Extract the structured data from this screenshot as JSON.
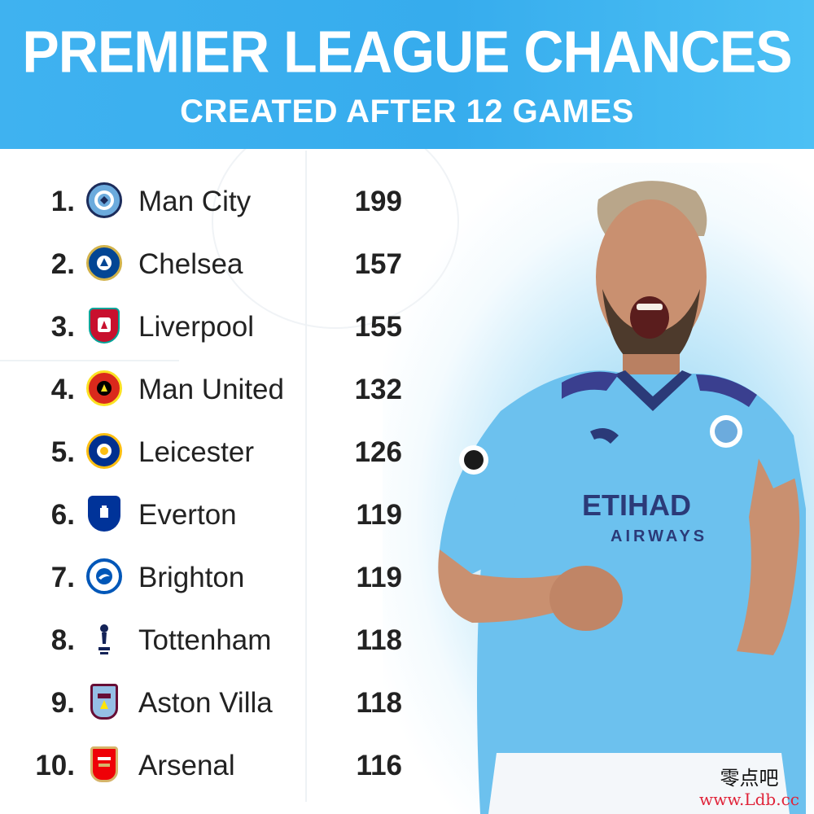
{
  "header": {
    "title": "PREMIER LEAGUE CHANCES",
    "subtitle": "CREATED AFTER 12 GAMES"
  },
  "colors": {
    "header_blue": "#3fb2f0",
    "text_dark": "#222222",
    "sky_blue": "#6cc4ee"
  },
  "rows": [
    {
      "rank": "1.",
      "club": "Man City",
      "value": "199",
      "badge_icon": "man-city-crest-icon"
    },
    {
      "rank": "2.",
      "club": "Chelsea",
      "value": "157",
      "badge_icon": "chelsea-crest-icon"
    },
    {
      "rank": "3.",
      "club": "Liverpool",
      "value": "155",
      "badge_icon": "liverpool-crest-icon"
    },
    {
      "rank": "4.",
      "club": "Man United",
      "value": "132",
      "badge_icon": "man-united-crest-icon"
    },
    {
      "rank": "5.",
      "club": "Leicester",
      "value": "126",
      "badge_icon": "leicester-crest-icon"
    },
    {
      "rank": "6.",
      "club": "Everton",
      "value": "119",
      "badge_icon": "everton-crest-icon"
    },
    {
      "rank": "7.",
      "club": "Brighton",
      "value": "119",
      "badge_icon": "brighton-crest-icon"
    },
    {
      "rank": "8.",
      "club": "Tottenham",
      "value": "118",
      "badge_icon": "tottenham-crest-icon"
    },
    {
      "rank": "9.",
      "club": "Aston Villa",
      "value": "118",
      "badge_icon": "aston-villa-crest-icon"
    },
    {
      "rank": "10.",
      "club": "Arsenal",
      "value": "116",
      "badge_icon": "arsenal-crest-icon"
    }
  ],
  "player_shirt": {
    "sponsor": "ETIHAD",
    "sponsor_sub": "AIRWAYS"
  },
  "watermark": {
    "chinese": "零点吧",
    "url": "www.Ldb.cc"
  }
}
